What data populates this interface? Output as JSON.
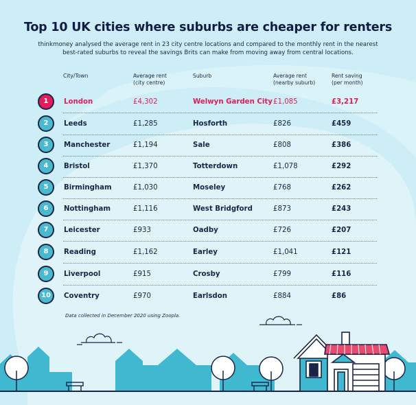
{
  "title": "Top 10 UK cities where suburbs are cheaper for renters",
  "subtitle": "thinkmoney analysed the average rent in 23 city centre locations and compared to the monthly rent in the nearest best-rated suburbs to reveal the savings Brits can make from moving away from central locations.",
  "headers": {
    "city": "City/Town",
    "avg_rent_line1": "Average rent",
    "avg_rent_line2": "(city centre)",
    "suburb": "Suburb",
    "nearby_line1": "Average rent",
    "nearby_line2": "(nearby suburb)",
    "saving_line1": "Rent saving",
    "saving_line2": "(per month)"
  },
  "rows": [
    {
      "rank": "1",
      "city": "London",
      "city_rent": "£4,302",
      "suburb": "Welwyn Garden City",
      "suburb_rent": "£1,085",
      "saving": "£3,217"
    },
    {
      "rank": "2",
      "city": "Leeds",
      "city_rent": "£1,285",
      "suburb": "Hosforth",
      "suburb_rent": "£826",
      "saving": "£459"
    },
    {
      "rank": "3",
      "city": "Manchester",
      "city_rent": "£1,194",
      "suburb": "Sale",
      "suburb_rent": "£808",
      "saving": "£386"
    },
    {
      "rank": "4",
      "city": "Bristol",
      "city_rent": "£1,370",
      "suburb": "Totterdown",
      "suburb_rent": "£1,078",
      "saving": "£292"
    },
    {
      "rank": "5",
      "city": "Birmingham",
      "city_rent": "£1,030",
      "suburb": "Moseley",
      "suburb_rent": "£768",
      "saving": "£262"
    },
    {
      "rank": "6",
      "city": "Nottingham",
      "city_rent": "£1,116",
      "suburb": "West Bridgford",
      "suburb_rent": "£873",
      "saving": "£243"
    },
    {
      "rank": "7",
      "city": "Leicester",
      "city_rent": "£933",
      "suburb": "Oadby",
      "suburb_rent": "£726",
      "saving": "£207"
    },
    {
      "rank": "8",
      "city": "Reading",
      "city_rent": "£1,162",
      "suburb": "Earley",
      "suburb_rent": "£1,041",
      "saving": "£121"
    },
    {
      "rank": "9",
      "city": "Liverpool",
      "city_rent": "£915",
      "suburb": "Crosby",
      "suburb_rent": "£799",
      "saving": "£116"
    },
    {
      "rank": "10",
      "city": "Coventry",
      "city_rent": "£970",
      "suburb": "Earlsdon",
      "suburb_rent": "£884",
      "saving": "£86"
    }
  ],
  "footnote": "Data collected in December 2020 using Zoopla.",
  "colors": {
    "background": "#cdeef6",
    "highlight": "#e11d5a",
    "badge": "#49b9cf",
    "navy": "#1a2446",
    "house_teal": "#3fb8d0",
    "roof": "#e8496e"
  },
  "icons": [
    "cloud-icon",
    "tree-icon",
    "bench-icon",
    "house-icon",
    "building-silhouette"
  ]
}
